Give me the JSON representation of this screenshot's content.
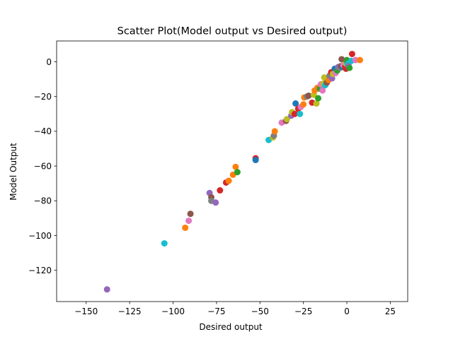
{
  "chart_data": {
    "type": "scatter",
    "title": "Scatter Plot(Model output vs Desired output)",
    "xlabel": "Desired output",
    "ylabel": "Model Output",
    "xlim": [
      -167,
      35
    ],
    "ylim": [
      -138,
      12
    ],
    "xticks": [
      -150,
      -125,
      -100,
      -75,
      -50,
      -25,
      0,
      25
    ],
    "yticks": [
      -120,
      -100,
      -80,
      -60,
      -40,
      -20,
      0
    ],
    "xtick_labels": [
      "−150",
      "−125",
      "−100",
      "−75",
      "−50",
      "−25",
      "0",
      "25"
    ],
    "ytick_labels": [
      "−120",
      "−100",
      "−80",
      "−60",
      "−40",
      "−20",
      "0"
    ],
    "grid": false,
    "palette": [
      "#1f77b4",
      "#ff7f0e",
      "#2ca02c",
      "#d62728",
      "#9467bd",
      "#8c564b",
      "#e377c2",
      "#7f7f7f",
      "#bcbd22",
      "#17becf"
    ],
    "points": [
      {
        "x": -138,
        "y": -131,
        "color": "#9467bd"
      },
      {
        "x": -105,
        "y": -104.5,
        "color": "#17becf"
      },
      {
        "x": -93,
        "y": -95.5,
        "color": "#ff7f0e"
      },
      {
        "x": -91,
        "y": -91.5,
        "color": "#e377c2"
      },
      {
        "x": -90,
        "y": -87.5,
        "color": "#8c564b"
      },
      {
        "x": -79,
        "y": -75.5,
        "color": "#9467bd"
      },
      {
        "x": -78,
        "y": -78,
        "color": "#8c564b"
      },
      {
        "x": -78,
        "y": -80,
        "color": "#7f7f7f"
      },
      {
        "x": -75.5,
        "y": -81,
        "color": "#9467bd"
      },
      {
        "x": -73,
        "y": -74,
        "color": "#d62728"
      },
      {
        "x": -69.5,
        "y": -69.5,
        "color": "#d62728"
      },
      {
        "x": -68,
        "y": -68.5,
        "color": "#ff7f0e"
      },
      {
        "x": -65.5,
        "y": -65,
        "color": "#ff7f0e"
      },
      {
        "x": -64,
        "y": -60.5,
        "color": "#ff7f0e"
      },
      {
        "x": -63,
        "y": -63.5,
        "color": "#2ca02c"
      },
      {
        "x": -52.5,
        "y": -55.5,
        "color": "#d62728"
      },
      {
        "x": -52.5,
        "y": -56.5,
        "color": "#1f77b4"
      },
      {
        "x": -45,
        "y": -45,
        "color": "#17becf"
      },
      {
        "x": -42.5,
        "y": -43.5,
        "color": "#bcbd22"
      },
      {
        "x": -42,
        "y": -42.5,
        "color": "#7f7f7f"
      },
      {
        "x": -41.5,
        "y": -40,
        "color": "#ff7f0e"
      },
      {
        "x": -37.5,
        "y": -35,
        "color": "#e377c2"
      },
      {
        "x": -35,
        "y": -34,
        "color": "#8c564b"
      },
      {
        "x": -34.5,
        "y": -33,
        "color": "#bcbd22"
      },
      {
        "x": -32,
        "y": -31,
        "color": "#9467bd"
      },
      {
        "x": -31.5,
        "y": -29,
        "color": "#bcbd22"
      },
      {
        "x": -30,
        "y": -30,
        "color": "#d62728"
      },
      {
        "x": -29.5,
        "y": -24,
        "color": "#1f77b4"
      },
      {
        "x": -28,
        "y": -27,
        "color": "#d62728"
      },
      {
        "x": -27,
        "y": -30,
        "color": "#17becf"
      },
      {
        "x": -26.5,
        "y": -26,
        "color": "#e377c2"
      },
      {
        "x": -25,
        "y": -24.5,
        "color": "#ff7f0e"
      },
      {
        "x": -24.5,
        "y": -20.5,
        "color": "#ff7f0e"
      },
      {
        "x": -23,
        "y": -20,
        "color": "#7f7f7f"
      },
      {
        "x": -22,
        "y": -19.5,
        "color": "#8c564b"
      },
      {
        "x": -20,
        "y": -23.5,
        "color": "#d62728"
      },
      {
        "x": -19,
        "y": -19,
        "color": "#bcbd22"
      },
      {
        "x": -18.5,
        "y": -16.5,
        "color": "#ff7f0e"
      },
      {
        "x": -17.5,
        "y": -24,
        "color": "#bcbd22"
      },
      {
        "x": -17,
        "y": -15,
        "color": "#ff7f0e"
      },
      {
        "x": -16.5,
        "y": -21,
        "color": "#2ca02c"
      },
      {
        "x": -15.5,
        "y": -15.5,
        "color": "#2ca02c"
      },
      {
        "x": -15,
        "y": -13,
        "color": "#e377c2"
      },
      {
        "x": -14,
        "y": -16.5,
        "color": "#e377c2"
      },
      {
        "x": -13.5,
        "y": -12.5,
        "color": "#bcbd22"
      },
      {
        "x": -13,
        "y": -9,
        "color": "#bcbd22"
      },
      {
        "x": -12.5,
        "y": -13.5,
        "color": "#17becf"
      },
      {
        "x": -11.5,
        "y": -12,
        "color": "#8c564b"
      },
      {
        "x": -10.5,
        "y": -10.5,
        "color": "#ff7f0e"
      },
      {
        "x": -10,
        "y": -8,
        "color": "#7f7f7f"
      },
      {
        "x": -9,
        "y": -6,
        "color": "#d62728"
      },
      {
        "x": -8.5,
        "y": -9.5,
        "color": "#9467bd"
      },
      {
        "x": -8,
        "y": -7,
        "color": "#bcbd22"
      },
      {
        "x": -7,
        "y": -4,
        "color": "#1f77b4"
      },
      {
        "x": -6.5,
        "y": -6.5,
        "color": "#e377c2"
      },
      {
        "x": -5.5,
        "y": -5,
        "color": "#2ca02c"
      },
      {
        "x": -5,
        "y": -3,
        "color": "#9467bd"
      },
      {
        "x": -4,
        "y": -3.5,
        "color": "#7f7f7f"
      },
      {
        "x": -3.5,
        "y": -2.5,
        "color": "#8c564b"
      },
      {
        "x": -3,
        "y": 1.5,
        "color": "#8c564b"
      },
      {
        "x": -2.5,
        "y": -3,
        "color": "#1f77b4"
      },
      {
        "x": -2,
        "y": -2,
        "color": "#e377c2"
      },
      {
        "x": -1,
        "y": -3,
        "color": "#d62728"
      },
      {
        "x": -0.5,
        "y": -4,
        "color": "#d62728"
      },
      {
        "x": -0.5,
        "y": -1,
        "color": "#bcbd22"
      },
      {
        "x": 0,
        "y": 0,
        "color": "#7f7f7f"
      },
      {
        "x": 0,
        "y": 1,
        "color": "#2ca02c"
      },
      {
        "x": 0.5,
        "y": -1.5,
        "color": "#17becf"
      },
      {
        "x": 1,
        "y": -1,
        "color": "#17becf"
      },
      {
        "x": 1,
        "y": -2.5,
        "color": "#9467bd"
      },
      {
        "x": 1.5,
        "y": -3.5,
        "color": "#2ca02c"
      },
      {
        "x": 2.5,
        "y": 0.5,
        "color": "#17becf"
      },
      {
        "x": 3,
        "y": 4.5,
        "color": "#d62728"
      },
      {
        "x": 5,
        "y": 1,
        "color": "#e377c2"
      },
      {
        "x": 7.5,
        "y": 1,
        "color": "#ff7f0e"
      }
    ]
  }
}
